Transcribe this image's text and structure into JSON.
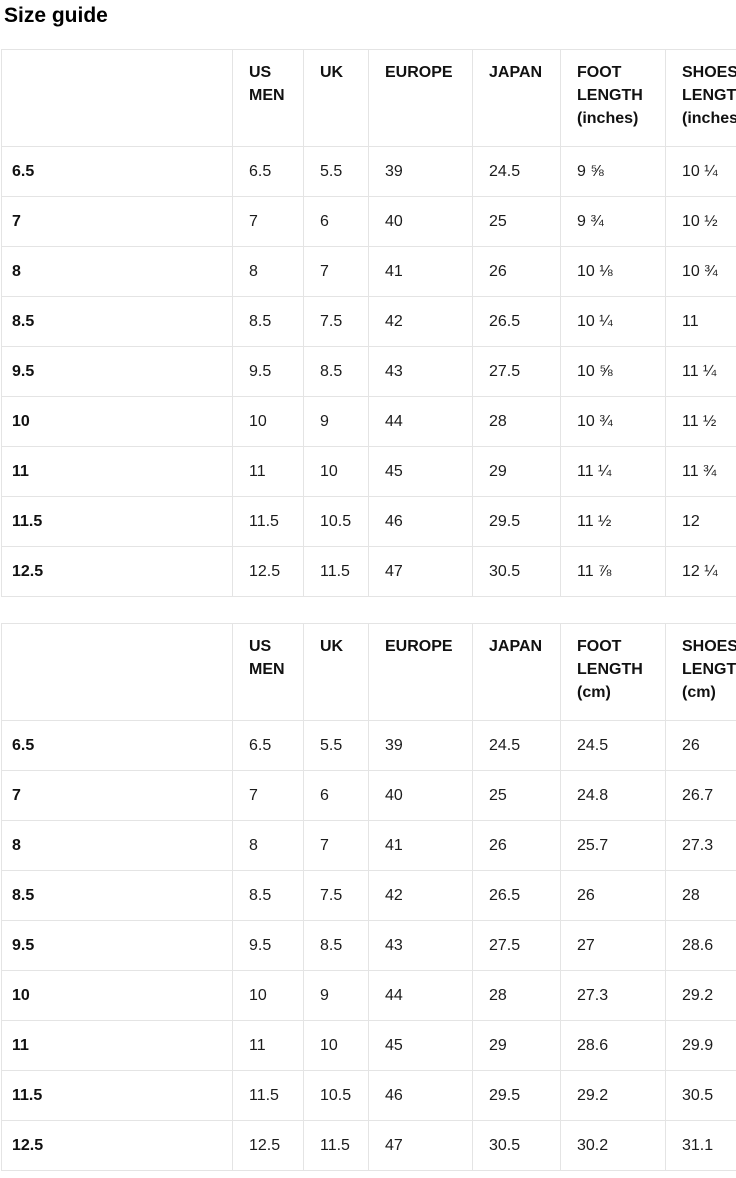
{
  "page": {
    "title": "Size guide"
  },
  "colors": {
    "background": "#ffffff",
    "border": "#e4e4e4",
    "text": "#1c1c1c",
    "heading_text": "#000000"
  },
  "tables": [
    {
      "id": "inches",
      "columns": [
        "",
        "US MEN",
        "UK",
        "EUROPE",
        "JAPAN",
        "FOOT LENGTH (inches)",
        "SHOES LENGTH (inches)"
      ],
      "rows": [
        [
          "6.5",
          "6.5",
          "5.5",
          "39",
          "24.5",
          "9 ⅝",
          "10 ¼"
        ],
        [
          "7",
          "7",
          "6",
          "40",
          "25",
          "9 ¾",
          "10 ½"
        ],
        [
          "8",
          "8",
          "7",
          "41",
          "26",
          "10 ⅛",
          "10 ¾"
        ],
        [
          "8.5",
          "8.5",
          "7.5",
          "42",
          "26.5",
          "10 ¼",
          "11"
        ],
        [
          "9.5",
          "9.5",
          "8.5",
          "43",
          "27.5",
          "10 ⅝",
          "11 ¼"
        ],
        [
          "10",
          "10",
          "9",
          "44",
          "28",
          "10 ¾",
          "11 ½"
        ],
        [
          "11",
          "11",
          "10",
          "45",
          "29",
          "11 ¼",
          "11 ¾"
        ],
        [
          "11.5",
          "11.5",
          "10.5",
          "46",
          "29.5",
          "11 ½",
          "12"
        ],
        [
          "12.5",
          "12.5",
          "11.5",
          "47",
          "30.5",
          "11 ⅞",
          "12 ¼"
        ]
      ]
    },
    {
      "id": "cm",
      "columns": [
        "",
        "US MEN",
        "UK",
        "EUROPE",
        "JAPAN",
        "FOOT LENGTH (cm)",
        "SHOES LENGTH (cm)"
      ],
      "rows": [
        [
          "6.5",
          "6.5",
          "5.5",
          "39",
          "24.5",
          "24.5",
          "26"
        ],
        [
          "7",
          "7",
          "6",
          "40",
          "25",
          "24.8",
          "26.7"
        ],
        [
          "8",
          "8",
          "7",
          "41",
          "26",
          "25.7",
          "27.3"
        ],
        [
          "8.5",
          "8.5",
          "7.5",
          "42",
          "26.5",
          "26",
          "28"
        ],
        [
          "9.5",
          "9.5",
          "8.5",
          "43",
          "27.5",
          "27",
          "28.6"
        ],
        [
          "10",
          "10",
          "9",
          "44",
          "28",
          "27.3",
          "29.2"
        ],
        [
          "11",
          "11",
          "10",
          "45",
          "29",
          "28.6",
          "29.9"
        ],
        [
          "11.5",
          "11.5",
          "10.5",
          "46",
          "29.5",
          "29.2",
          "30.5"
        ],
        [
          "12.5",
          "12.5",
          "11.5",
          "47",
          "30.5",
          "30.2",
          "31.1"
        ]
      ]
    }
  ]
}
